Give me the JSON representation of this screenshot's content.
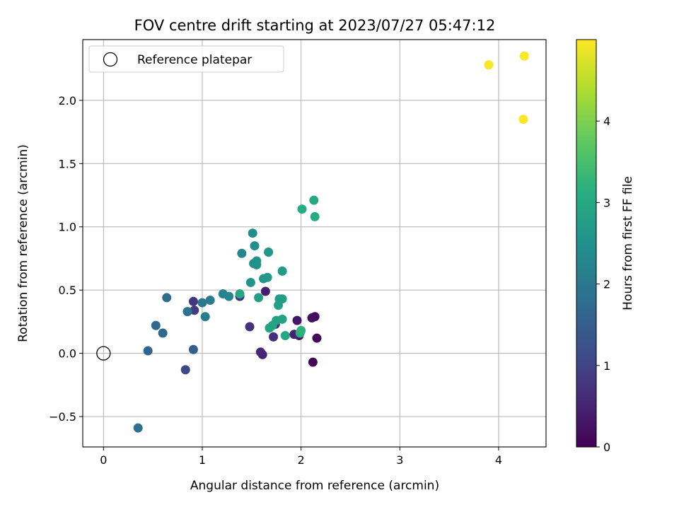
{
  "chart_data": {
    "type": "scatter",
    "title": "FOV centre drift starting at 2023/07/27 05:47:12",
    "xlabel": "Angular distance from reference (arcmin)",
    "ylabel": "Rotation from reference (arcmin)",
    "xlim": [
      -0.21,
      4.48
    ],
    "ylim": [
      -0.74,
      2.48
    ],
    "xticks": [
      0,
      1,
      2,
      3,
      4
    ],
    "xtick_labels": [
      "0",
      "1",
      "2",
      "3",
      "4"
    ],
    "yticks": [
      -0.5,
      0.0,
      0.5,
      1.0,
      1.5,
      2.0
    ],
    "ytick_labels": [
      "−0.5",
      "0.0",
      "0.5",
      "1.0",
      "1.5",
      "2.0"
    ],
    "grid": true,
    "legend": {
      "placement": "upper-left",
      "entries": [
        {
          "label": "Reference platepar",
          "marker": "open-circle"
        }
      ]
    },
    "reference_point": {
      "x": 0,
      "y": 0
    },
    "colorbar": {
      "label": "Hours from first FF file",
      "colormap": "viridis",
      "range": [
        0,
        5.0
      ],
      "ticks": [
        0,
        1,
        2,
        3,
        4
      ],
      "tick_labels": [
        "0",
        "1",
        "2",
        "3",
        "4"
      ]
    },
    "points": [
      {
        "x": 2.12,
        "y": -0.07,
        "c": 0.05
      },
      {
        "x": 2.16,
        "y": 0.12,
        "c": 0.08
      },
      {
        "x": 2.14,
        "y": 0.29,
        "c": 0.12
      },
      {
        "x": 2.11,
        "y": 0.28,
        "c": 0.2
      },
      {
        "x": 1.96,
        "y": 0.26,
        "c": 0.3
      },
      {
        "x": 1.98,
        "y": 0.14,
        "c": 0.35
      },
      {
        "x": 1.93,
        "y": 0.15,
        "c": 0.45
      },
      {
        "x": 1.64,
        "y": 0.49,
        "c": 0.4
      },
      {
        "x": 1.61,
        "y": -0.01,
        "c": 0.5
      },
      {
        "x": 1.59,
        "y": 0.01,
        "c": 0.55
      },
      {
        "x": 1.74,
        "y": 0.23,
        "c": 0.6
      },
      {
        "x": 1.72,
        "y": 0.13,
        "c": 0.65
      },
      {
        "x": 1.48,
        "y": 0.21,
        "c": 0.7
      },
      {
        "x": 1.38,
        "y": 0.45,
        "c": 0.75
      },
      {
        "x": 0.91,
        "y": 0.41,
        "c": 0.8
      },
      {
        "x": 0.92,
        "y": 0.34,
        "c": 0.85
      },
      {
        "x": 0.83,
        "y": -0.13,
        "c": 1.1
      },
      {
        "x": 0.91,
        "y": 0.03,
        "c": 1.5
      },
      {
        "x": 0.45,
        "y": 0.02,
        "c": 1.6
      },
      {
        "x": 0.53,
        "y": 0.22,
        "c": 1.7
      },
      {
        "x": 0.6,
        "y": 0.16,
        "c": 1.65
      },
      {
        "x": 0.64,
        "y": 0.44,
        "c": 1.75
      },
      {
        "x": 0.35,
        "y": -0.59,
        "c": 1.8
      },
      {
        "x": 0.85,
        "y": 0.33,
        "c": 1.9
      },
      {
        "x": 1.0,
        "y": 0.4,
        "c": 2.0
      },
      {
        "x": 1.08,
        "y": 0.42,
        "c": 2.05
      },
      {
        "x": 1.03,
        "y": 0.29,
        "c": 2.1
      },
      {
        "x": 1.21,
        "y": 0.47,
        "c": 2.2
      },
      {
        "x": 1.27,
        "y": 0.45,
        "c": 2.3
      },
      {
        "x": 1.4,
        "y": 0.79,
        "c": 2.3
      },
      {
        "x": 1.51,
        "y": 0.95,
        "c": 2.4
      },
      {
        "x": 1.53,
        "y": 0.85,
        "c": 2.4
      },
      {
        "x": 1.52,
        "y": 0.71,
        "c": 2.45
      },
      {
        "x": 1.55,
        "y": 0.73,
        "c": 2.5
      },
      {
        "x": 1.55,
        "y": 0.7,
        "c": 2.5
      },
      {
        "x": 1.49,
        "y": 0.56,
        "c": 2.55
      },
      {
        "x": 1.67,
        "y": 0.8,
        "c": 2.6
      },
      {
        "x": 1.62,
        "y": 0.59,
        "c": 2.6
      },
      {
        "x": 1.66,
        "y": 0.6,
        "c": 2.65
      },
      {
        "x": 1.81,
        "y": 0.65,
        "c": 2.7
      },
      {
        "x": 1.78,
        "y": 0.43,
        "c": 2.75
      },
      {
        "x": 1.81,
        "y": 0.43,
        "c": 2.75
      },
      {
        "x": 1.77,
        "y": 0.38,
        "c": 2.8
      },
      {
        "x": 1.57,
        "y": 0.44,
        "c": 2.8
      },
      {
        "x": 1.75,
        "y": 0.26,
        "c": 2.85
      },
      {
        "x": 1.81,
        "y": 0.27,
        "c": 2.85
      },
      {
        "x": 1.68,
        "y": 0.2,
        "c": 2.9
      },
      {
        "x": 1.71,
        "y": 0.22,
        "c": 2.9
      },
      {
        "x": 1.84,
        "y": 0.14,
        "c": 2.95
      },
      {
        "x": 1.38,
        "y": 0.47,
        "c": 3.0
      },
      {
        "x": 2.13,
        "y": 1.21,
        "c": 3.0
      },
      {
        "x": 2.01,
        "y": 1.14,
        "c": 3.05
      },
      {
        "x": 2.14,
        "y": 1.08,
        "c": 3.05
      },
      {
        "x": 1.99,
        "y": 0.16,
        "c": 3.1
      },
      {
        "x": 2.0,
        "y": 0.18,
        "c": 3.2
      },
      {
        "x": 3.9,
        "y": 2.28,
        "c": 4.95
      },
      {
        "x": 4.26,
        "y": 2.35,
        "c": 4.98
      },
      {
        "x": 4.25,
        "y": 1.85,
        "c": 5.0
      }
    ]
  }
}
